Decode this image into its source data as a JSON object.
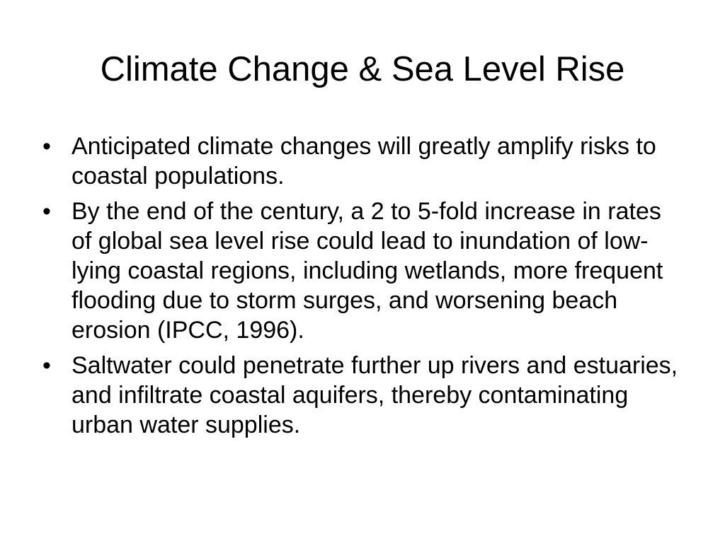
{
  "slide": {
    "title": "Climate Change & Sea Level Rise",
    "bullet_marker": "•",
    "bullets": [
      "Anticipated climate changes will greatly amplify risks to coastal populations.",
      "By the end of the century, a 2 to 5-fold increase in rates of global sea level rise could lead to inundation of low-lying coastal regions, including wetlands, more frequent flooding due to storm surges, and worsening beach erosion (IPCC, 1996).",
      "Saltwater could penetrate further up rivers and estuaries, and infiltrate coastal aquifers, thereby contaminating urban water supplies."
    ]
  }
}
